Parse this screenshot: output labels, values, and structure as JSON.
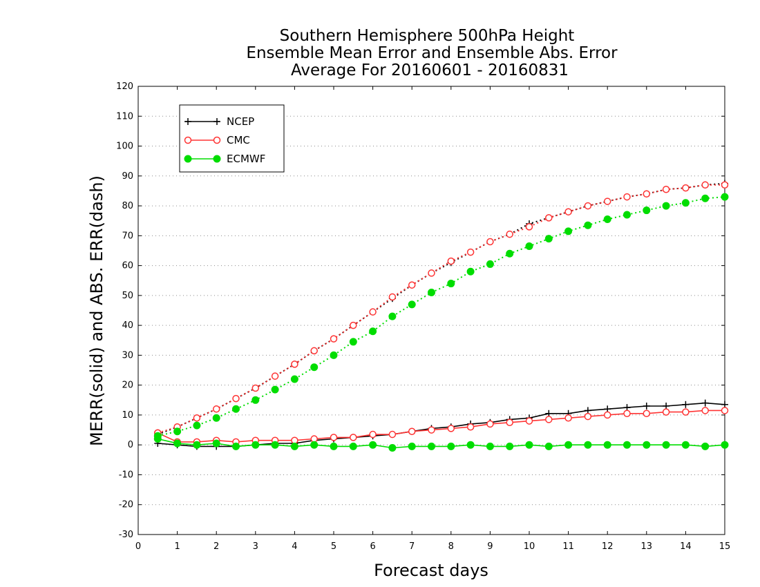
{
  "chart_data": {
    "type": "line",
    "title_lines": [
      "Southern Hemisphere 500hPa Height",
      "Ensemble Mean Error and Ensemble Abs. Error",
      "Average For 20160601 - 20160831"
    ],
    "xlabel": "Forecast days",
    "ylabel": "MERR(solid) and ABS. ERR(dash)",
    "xlim": [
      0,
      15
    ],
    "ylim": [
      -30,
      120
    ],
    "xticks": [
      0,
      1,
      2,
      3,
      4,
      5,
      6,
      7,
      8,
      9,
      10,
      11,
      12,
      13,
      14,
      15
    ],
    "yticks": [
      -30,
      -20,
      -10,
      0,
      10,
      20,
      30,
      40,
      50,
      60,
      70,
      80,
      90,
      100,
      110,
      120
    ],
    "grid": "horizontal dotted",
    "legend_position": "top-left",
    "x": [
      0.5,
      1.0,
      1.5,
      2.0,
      2.5,
      3.0,
      3.5,
      4.0,
      4.5,
      5.0,
      5.5,
      6.0,
      6.5,
      7.0,
      7.5,
      8.0,
      8.5,
      9.0,
      9.5,
      10.0,
      10.5,
      11.0,
      11.5,
      12.0,
      12.5,
      13.0,
      13.5,
      14.0,
      14.5,
      15.0
    ],
    "series": [
      {
        "name": "NCEP",
        "color": "#000000",
        "marker": "plus",
        "abs_err": [
          3.5,
          6.0,
          9.0,
          12.0,
          15.5,
          19.0,
          23.0,
          27.0,
          31.5,
          35.5,
          40.0,
          44.5,
          49.0,
          53.5,
          57.5,
          61.0,
          64.5,
          68.0,
          70.5,
          74.0,
          76.0,
          78.0,
          80.0,
          81.5,
          83.0,
          84.0,
          85.5,
          86.0,
          87.0,
          87.5
        ],
        "mean_err": [
          0.5,
          0.0,
          -0.5,
          -0.5,
          -0.5,
          0.0,
          0.5,
          0.5,
          1.5,
          2.0,
          2.5,
          3.0,
          3.5,
          4.5,
          5.5,
          6.0,
          7.0,
          7.5,
          8.5,
          9.0,
          10.5,
          10.5,
          11.5,
          12.0,
          12.5,
          13.0,
          13.0,
          13.5,
          14.0,
          13.5
        ]
      },
      {
        "name": "CMC",
        "color": "#ff3333",
        "marker": "open-circle",
        "abs_err": [
          4.0,
          6.0,
          9.0,
          12.0,
          15.5,
          19.0,
          23.0,
          27.0,
          31.5,
          35.5,
          40.0,
          44.5,
          49.5,
          53.5,
          57.5,
          61.5,
          64.5,
          68.0,
          70.5,
          73.0,
          76.0,
          78.0,
          80.0,
          81.5,
          83.0,
          84.0,
          85.5,
          86.0,
          87.0,
          87.0
        ],
        "mean_err": [
          4.0,
          1.0,
          1.0,
          1.5,
          1.0,
          1.5,
          1.5,
          1.5,
          2.0,
          2.5,
          2.5,
          3.5,
          3.5,
          4.5,
          5.0,
          5.5,
          6.0,
          7.0,
          7.5,
          8.0,
          8.5,
          9.0,
          9.5,
          10.0,
          10.5,
          10.5,
          11.0,
          11.0,
          11.5,
          11.5
        ]
      },
      {
        "name": "ECMWF",
        "color": "#00dd00",
        "marker": "filled-circle",
        "abs_err": [
          3.0,
          4.5,
          6.5,
          9.0,
          12.0,
          15.0,
          18.5,
          22.0,
          26.0,
          30.0,
          34.5,
          38.0,
          43.0,
          47.0,
          51.0,
          54.0,
          58.0,
          60.5,
          64.0,
          66.5,
          69.0,
          71.5,
          73.5,
          75.5,
          77.0,
          78.5,
          80.0,
          81.0,
          82.5,
          83.0
        ],
        "mean_err": [
          2.0,
          0.5,
          0.0,
          0.5,
          -0.5,
          0.0,
          0.0,
          -0.5,
          0.0,
          -0.5,
          -0.5,
          0.0,
          -1.0,
          -0.5,
          -0.5,
          -0.5,
          0.0,
          -0.5,
          -0.5,
          0.0,
          -0.5,
          0.0,
          0.0,
          0.0,
          0.0,
          0.0,
          0.0,
          0.0,
          -0.5,
          0.0
        ]
      }
    ]
  }
}
